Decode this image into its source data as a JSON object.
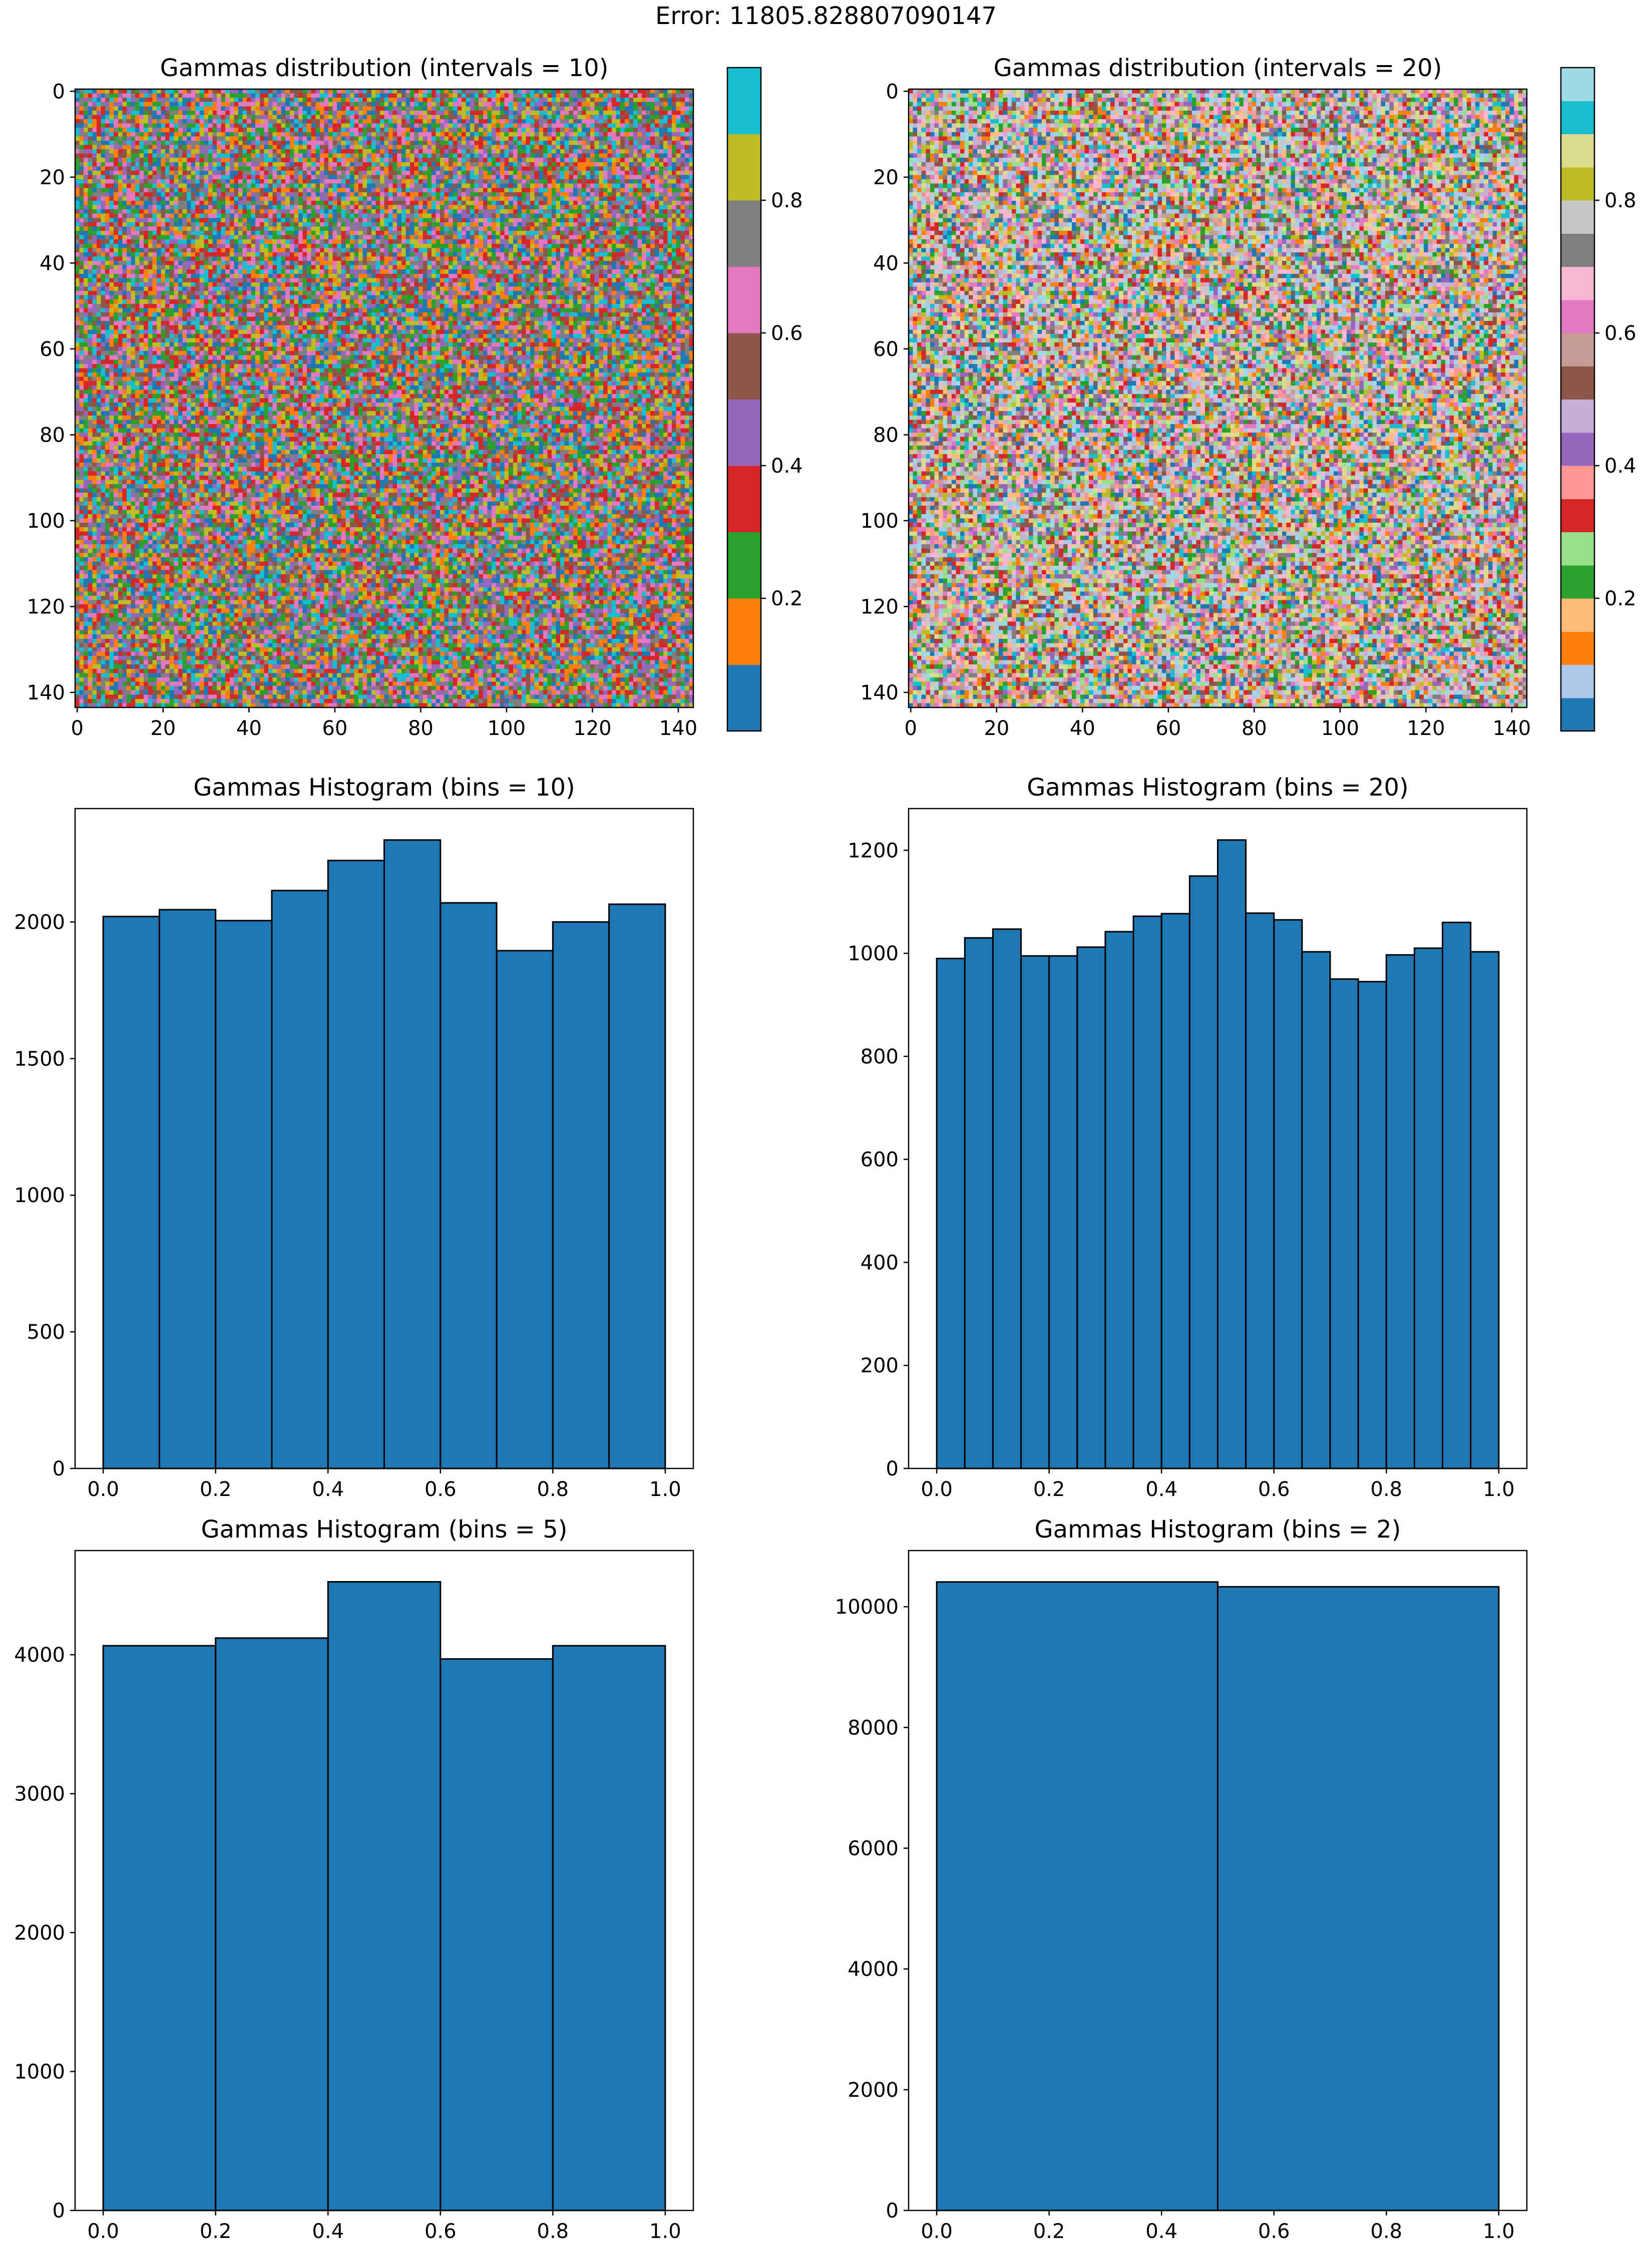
{
  "suptitle": "Error: 11805.828807090147",
  "colors": {
    "bar_fill": "#1f77b4",
    "bar_edge": "#000000",
    "tab10": [
      "#1f77b4",
      "#ff7f0e",
      "#2ca02c",
      "#d62728",
      "#9467bd",
      "#8c564b",
      "#e377c2",
      "#7f7f7f",
      "#bcbd22",
      "#17becf"
    ],
    "tab20": [
      "#1f77b4",
      "#aec7e8",
      "#ff7f0e",
      "#ffbb78",
      "#2ca02c",
      "#98df8a",
      "#d62728",
      "#ff9896",
      "#9467bd",
      "#c5b0d5",
      "#8c564b",
      "#c49c94",
      "#e377c2",
      "#f7b6d2",
      "#7f7f7f",
      "#c7c7c7",
      "#bcbd22",
      "#dbdb8d",
      "#17becf",
      "#9edae5"
    ]
  },
  "chart_data": [
    {
      "type": "heatmap",
      "title": "Gammas distribution (intervals = 10)",
      "grid_size": 144,
      "xlim": [
        0,
        144
      ],
      "ylim": [
        144,
        0
      ],
      "x_ticks": [
        0,
        20,
        40,
        60,
        80,
        100,
        120,
        140
      ],
      "y_ticks": [
        0,
        20,
        40,
        60,
        80,
        100,
        120,
        140
      ],
      "colormap": "tab10",
      "colorbar": {
        "range": [
          0,
          1
        ],
        "ticks": [
          0.2,
          0.4,
          0.6,
          0.8
        ],
        "intervals": 10
      }
    },
    {
      "type": "heatmap",
      "title": "Gammas distribution (intervals = 20)",
      "grid_size": 144,
      "xlim": [
        0,
        144
      ],
      "ylim": [
        144,
        0
      ],
      "x_ticks": [
        0,
        20,
        40,
        60,
        80,
        100,
        120,
        140
      ],
      "y_ticks": [
        0,
        20,
        40,
        60,
        80,
        100,
        120,
        140
      ],
      "colormap": "tab20",
      "colorbar": {
        "range": [
          0,
          1
        ],
        "ticks": [
          0.2,
          0.4,
          0.6,
          0.8
        ],
        "intervals": 20
      }
    },
    {
      "type": "bar",
      "title": "Gammas Histogram (bins = 10)",
      "bin_edges": [
        0.0,
        0.1,
        0.2,
        0.3,
        0.4,
        0.5,
        0.6,
        0.7,
        0.8,
        0.9,
        1.0
      ],
      "values": [
        2020,
        2045,
        2005,
        2115,
        2225,
        2300,
        2070,
        1895,
        2000,
        2065
      ],
      "xlim": [
        -0.05,
        1.05
      ],
      "ylim": [
        0,
        2415
      ],
      "x_ticks": [
        0.0,
        0.2,
        0.4,
        0.6,
        0.8,
        1.0
      ],
      "y_ticks": [
        0,
        500,
        1000,
        1500,
        2000
      ]
    },
    {
      "type": "bar",
      "title": "Gammas Histogram (bins = 20)",
      "bin_edges": [
        0.0,
        0.05,
        0.1,
        0.15,
        0.2,
        0.25,
        0.3,
        0.35,
        0.4,
        0.45,
        0.5,
        0.55,
        0.6,
        0.65,
        0.7,
        0.75,
        0.8,
        0.85,
        0.9,
        0.95,
        1.0
      ],
      "values": [
        990,
        1030,
        1047,
        995,
        995,
        1012,
        1042,
        1072,
        1077,
        1150,
        1220,
        1078,
        1065,
        1003,
        950,
        945,
        997,
        1010,
        1060,
        1003
      ],
      "xlim": [
        -0.05,
        1.05
      ],
      "ylim": [
        0,
        1281
      ],
      "x_ticks": [
        0.0,
        0.2,
        0.4,
        0.6,
        0.8,
        1.0
      ],
      "y_ticks": [
        0,
        200,
        400,
        600,
        800,
        1000,
        1200
      ]
    },
    {
      "type": "bar",
      "title": "Gammas Histogram (bins = 5)",
      "bin_edges": [
        0.0,
        0.2,
        0.4,
        0.6,
        0.8,
        1.0
      ],
      "values": [
        4065,
        4120,
        4525,
        3970,
        4065
      ],
      "xlim": [
        -0.05,
        1.05
      ],
      "ylim": [
        0,
        4750
      ],
      "x_ticks": [
        0.0,
        0.2,
        0.4,
        0.6,
        0.8,
        1.0
      ],
      "y_ticks": [
        0,
        1000,
        2000,
        3000,
        4000
      ]
    },
    {
      "type": "bar",
      "title": "Gammas Histogram (bins = 2)",
      "bin_edges": [
        0.0,
        0.5,
        1.0
      ],
      "values": [
        10410,
        10330
      ],
      "xlim": [
        -0.05,
        1.05
      ],
      "ylim": [
        0,
        10930
      ],
      "x_ticks": [
        0.0,
        0.2,
        0.4,
        0.6,
        0.8,
        1.0
      ],
      "y_ticks": [
        0,
        2000,
        4000,
        6000,
        8000,
        10000
      ]
    }
  ]
}
